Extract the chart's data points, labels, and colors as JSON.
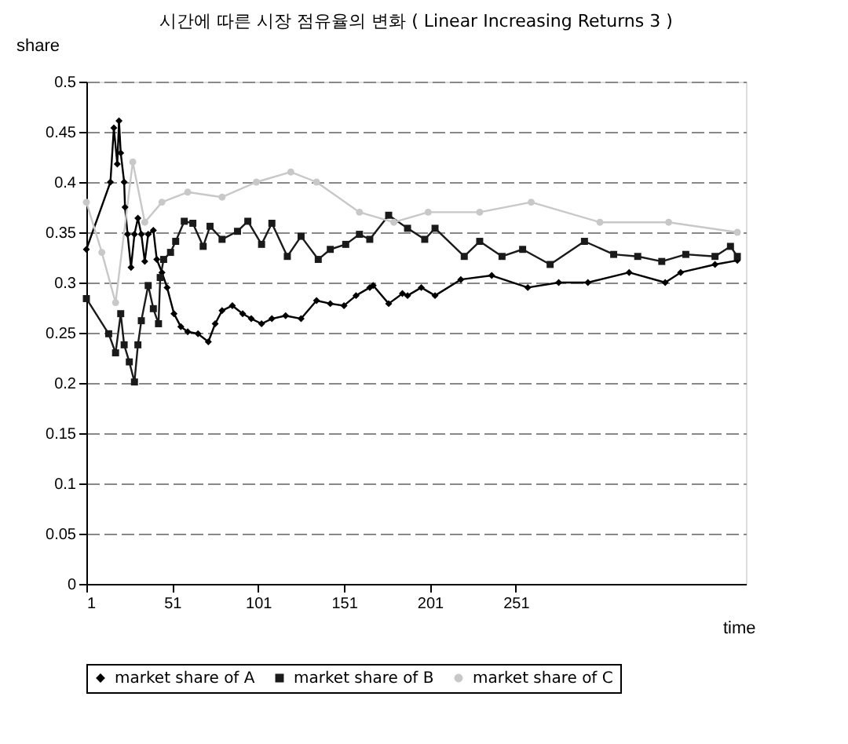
{
  "chart_data": {
    "type": "line",
    "title": "시간에 따른 시장 점유율의 변화 ( Linear Increasing Returns 3 )",
    "xlabel": "time",
    "ylabel": "share",
    "xlim": [
      1,
      385
    ],
    "xticks": [
      1,
      51,
      101,
      151,
      201,
      251
    ],
    "ylim": [
      0,
      0.5
    ],
    "yticks": [
      0,
      0.05,
      0.1,
      0.15,
      0.2,
      0.25,
      0.3,
      0.35,
      0.4,
      0.45,
      0.5
    ],
    "grid": "y",
    "legend": "bottom",
    "line_style": "solid",
    "series": [
      {
        "name": "market share of A",
        "color": "#000000",
        "marker": "diamond",
        "x": [
          1,
          15,
          17,
          19,
          20,
          21,
          23,
          23.5,
          25,
          27,
          29,
          31,
          33,
          35,
          37,
          40,
          42,
          45,
          48,
          52,
          56,
          60,
          66,
          72,
          76,
          80,
          86,
          92,
          97,
          103,
          109,
          117,
          126,
          135,
          143,
          151,
          158,
          166,
          168,
          177,
          185,
          188,
          196,
          204,
          219,
          237,
          258,
          276,
          293,
          317,
          338,
          347,
          367,
          380
        ],
        "values": [
          0.333,
          0.4,
          0.454,
          0.418,
          0.461,
          0.429,
          0.4,
          0.375,
          0.348,
          0.315,
          0.348,
          0.364,
          0.348,
          0.321,
          0.348,
          0.352,
          0.323,
          0.31,
          0.295,
          0.269,
          0.256,
          0.251,
          0.249,
          0.241,
          0.259,
          0.272,
          0.277,
          0.269,
          0.264,
          0.259,
          0.264,
          0.267,
          0.264,
          0.282,
          0.279,
          0.277,
          0.287,
          0.295,
          0.297,
          0.279,
          0.289,
          0.287,
          0.295,
          0.287,
          0.303,
          0.307,
          0.295,
          0.3,
          0.3,
          0.31,
          0.3,
          0.31,
          0.318,
          0.322
        ]
      },
      {
        "name": "market share of B",
        "color": "#1a1a1a",
        "marker": "square",
        "x": [
          1,
          14,
          18,
          21,
          23,
          26,
          29,
          31,
          33,
          37,
          40,
          43,
          44,
          46,
          50,
          53,
          58,
          63,
          69,
          73,
          80,
          89,
          95,
          103,
          109,
          118,
          126,
          136,
          143,
          152,
          160,
          166,
          177,
          188,
          198,
          204,
          221,
          230,
          243,
          255,
          271,
          291,
          308,
          322,
          336,
          350,
          367,
          376,
          380
        ],
        "values": [
          0.284,
          0.249,
          0.23,
          0.269,
          0.238,
          0.221,
          0.201,
          0.238,
          0.262,
          0.297,
          0.274,
          0.259,
          0.305,
          0.323,
          0.33,
          0.341,
          0.361,
          0.359,
          0.336,
          0.356,
          0.343,
          0.351,
          0.361,
          0.338,
          0.359,
          0.326,
          0.346,
          0.323,
          0.333,
          0.338,
          0.348,
          0.343,
          0.367,
          0.354,
          0.343,
          0.354,
          0.326,
          0.341,
          0.326,
          0.333,
          0.318,
          0.341,
          0.328,
          0.326,
          0.321,
          0.328,
          0.326,
          0.336,
          0.326
        ]
      },
      {
        "name": "market share of C",
        "color": "#c8c8c8",
        "marker": "circle",
        "x": [
          1,
          10,
          18,
          28,
          35,
          45,
          60,
          80,
          100,
          120,
          135,
          160,
          180,
          200,
          230,
          260,
          300,
          340,
          380
        ],
        "values": [
          0.38,
          0.33,
          0.28,
          0.42,
          0.36,
          0.38,
          0.39,
          0.385,
          0.4,
          0.41,
          0.4,
          0.37,
          0.36,
          0.37,
          0.37,
          0.38,
          0.36,
          0.36,
          0.35
        ]
      }
    ]
  }
}
